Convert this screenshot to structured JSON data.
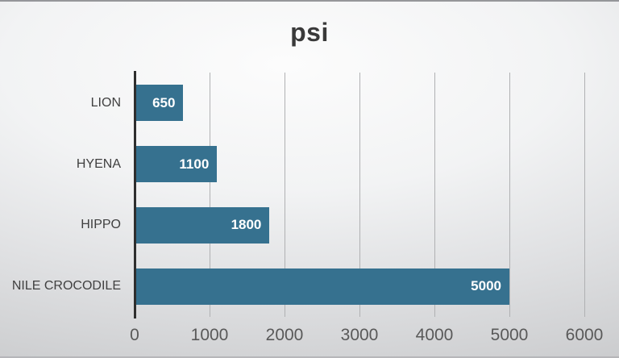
{
  "slide": {
    "background_center": "#fbfbfb",
    "background_edge": "#c5c6c8"
  },
  "chart_data": {
    "type": "bar",
    "orientation": "horizontal",
    "title": "psi",
    "xlabel": "",
    "ylabel": "",
    "categories": [
      "LION",
      "HYENA",
      "HIPPO",
      "NILE CROCODILE"
    ],
    "values": [
      650,
      1100,
      1800,
      5000
    ],
    "bar_labels": [
      "650",
      "1100",
      "1800",
      "5000"
    ],
    "bar_label_position": "inside-end",
    "xlim": [
      0,
      6000
    ],
    "xticks": [
      0,
      1000,
      2000,
      3000,
      4000,
      5000,
      6000
    ],
    "grid": true,
    "legend": "none",
    "colors": {
      "bar": "#36718F",
      "bar_label_text": "#ffffff",
      "title_text": "#3a3a3a",
      "category_text": "#404040",
      "tick_text": "#595959",
      "gridline": "#b0b1b3",
      "axis_line": "#2e2e2e"
    }
  }
}
